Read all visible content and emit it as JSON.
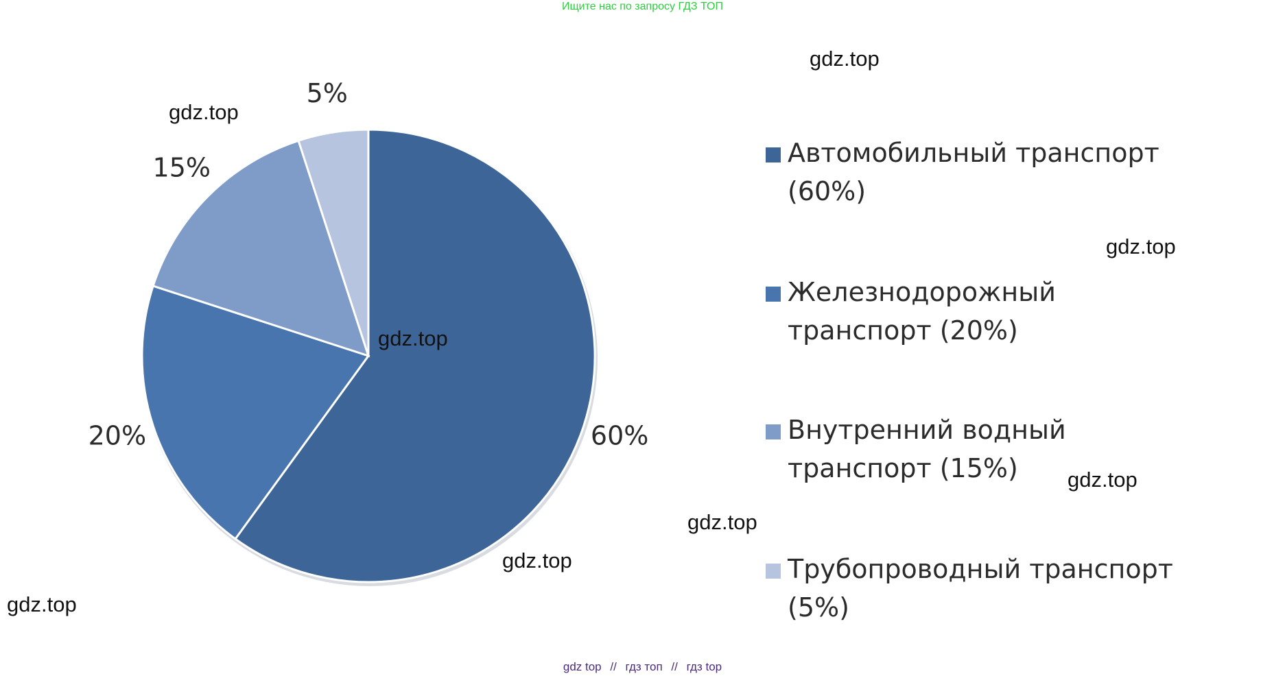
{
  "header": {
    "text": "Ищите нас по запросу ГДЗ ТОП"
  },
  "footer": {
    "parts": [
      "gdz top",
      "гдз топ",
      "гдз top"
    ],
    "separator": "//"
  },
  "watermark_text": "gdz.top",
  "chart_data": {
    "type": "pie",
    "start_angle_deg": 0,
    "direction": "clockwise",
    "slices": [
      {
        "name": "Автомобильный транспорт (60%)",
        "value": 60,
        "label": "60%",
        "color": "#3e6598"
      },
      {
        "name": "Железнодорожный транспорт (20%)",
        "value": 20,
        "label": "20%",
        "color": "#4875ae"
      },
      {
        "name": "Внутренний водный транспорт (15%)",
        "value": 15,
        "label": "15%",
        "color": "#7f9bc8"
      },
      {
        "name": "Трубопроводный транспорт (5%)",
        "value": 5,
        "label": "5%",
        "color": "#b6c4df"
      }
    ],
    "legend_position": "right"
  }
}
